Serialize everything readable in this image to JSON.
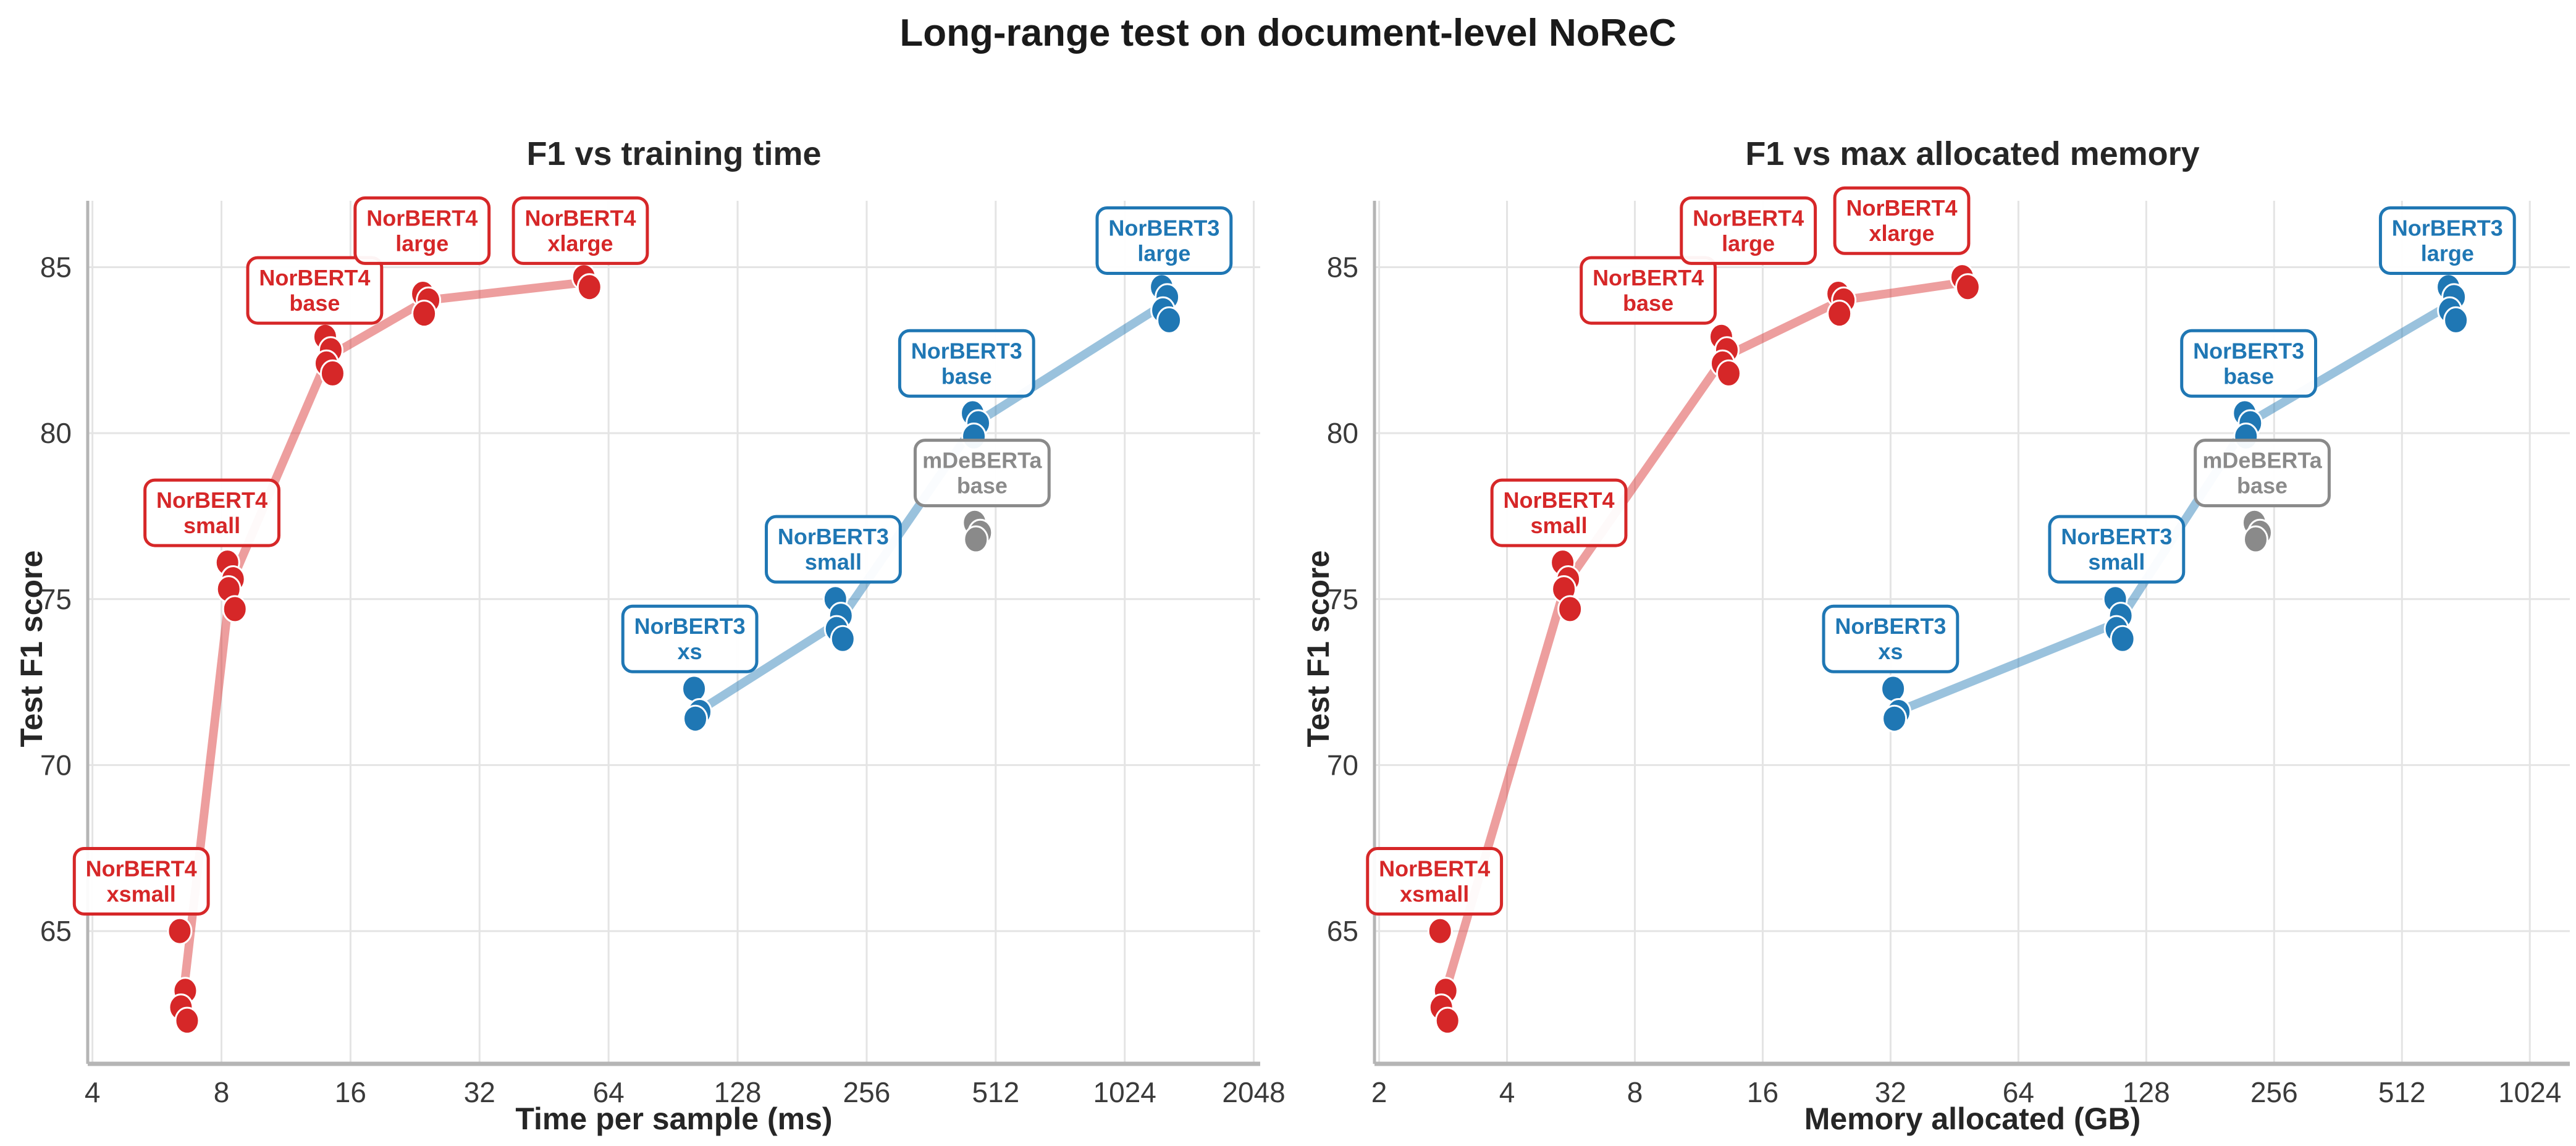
{
  "page": {
    "title": "Long-range test on document-level NoReC",
    "background": "#ffffff"
  },
  "style_colors": {
    "grid": "#e4e4e4",
    "spine": "#b5b5b5",
    "tick_text": "#3a3a3a",
    "title_text": "#1a1a1a"
  },
  "chart_data": [
    {
      "type": "scatter",
      "title": "F1 vs training time",
      "xlabel": "Time per sample (ms)",
      "ylabel": "Test F1 score",
      "xscale": "log2",
      "grid": true,
      "xlim": [
        3.9,
        2120
      ],
      "ylim": [
        61.0,
        87.0
      ],
      "xticks": [
        4,
        8,
        16,
        32,
        64,
        128,
        256,
        512,
        1024,
        2048
      ],
      "yticks": [
        65,
        70,
        75,
        80,
        85
      ],
      "series": [
        {
          "name": "NorBERT4",
          "point_color": "#d62728",
          "line_color": "rgba(214,39,40,0.45)",
          "label_color": "#d62728",
          "has_line": true,
          "groups": [
            {
              "label": [
                "NorBERT4",
                "xsmall"
              ],
              "x": 6.5,
              "points": [
                65.0,
                63.2,
                62.7,
                62.3
              ],
              "label_at": [
                5.2,
                66.5
              ]
            },
            {
              "label": [
                "NorBERT4",
                "small"
              ],
              "x": 8.4,
              "points": [
                76.1,
                75.6,
                75.3,
                74.7
              ],
              "label_at": [
                7.6,
                77.6
              ]
            },
            {
              "label": [
                "NorBERT4",
                "base"
              ],
              "x": 14.2,
              "points": [
                82.9,
                82.5,
                82.1,
                81.8
              ],
              "label_at": [
                13.2,
                84.3
              ]
            },
            {
              "label": [
                "NorBERT4",
                "large"
              ],
              "x": 24,
              "points": [
                84.2,
                84.0,
                83.6
              ],
              "label_at": [
                23.5,
                86.1
              ]
            },
            {
              "label": [
                "NorBERT4",
                "xlarge"
              ],
              "x": 57,
              "points": [
                84.7,
                84.4
              ],
              "label_at": [
                55,
                86.1
              ]
            }
          ]
        },
        {
          "name": "NorBERT3",
          "point_color": "#1f77b4",
          "line_color": "rgba(31,119,180,0.45)",
          "label_color": "#1f77b4",
          "has_line": true,
          "groups": [
            {
              "label": [
                "NorBERT3",
                "xs"
              ],
              "x": 103,
              "points": [
                72.3,
                71.6,
                71.4
              ],
              "label_at": [
                99,
                73.8
              ]
            },
            {
              "label": [
                "NorBERT3",
                "small"
              ],
              "x": 220,
              "points": [
                75.0,
                74.5,
                74.1,
                73.8
              ],
              "label_at": [
                214,
                76.5
              ]
            },
            {
              "label": [
                "NorBERT3",
                "base"
              ],
              "x": 460,
              "points": [
                80.6,
                80.3,
                79.9
              ],
              "label_at": [
                438,
                82.1
              ]
            },
            {
              "label": [
                "NorBERT3",
                "large"
              ],
              "x": 1270,
              "points": [
                84.4,
                84.1,
                83.7,
                83.4
              ],
              "label_at": [
                1265,
                85.8
              ]
            }
          ]
        },
        {
          "name": "mDeBERTa",
          "point_color": "#8a8a8a",
          "line_color": "rgba(138,138,138,0.45)",
          "label_color": "#8a8a8a",
          "has_line": false,
          "groups": [
            {
              "label": [
                "mDeBERTa",
                "base"
              ],
              "x": 465,
              "points": [
                77.3,
                77.0,
                76.8
              ],
              "label_at": [
                476,
                78.8
              ]
            }
          ]
        }
      ]
    },
    {
      "type": "scatter",
      "title": "F1 vs max allocated memory",
      "xlabel": "Memory allocated (GB)",
      "ylabel": "Test F1 score",
      "xscale": "log2",
      "grid": true,
      "xlim": [
        1.95,
        1272
      ],
      "ylim": [
        61.0,
        87.0
      ],
      "xticks": [
        2,
        4,
        8,
        16,
        32,
        64,
        128,
        256,
        512,
        1024
      ],
      "yticks": [
        65,
        70,
        75,
        80,
        85
      ],
      "series": [
        {
          "name": "NorBERT4",
          "point_color": "#d62728",
          "line_color": "rgba(214,39,40,0.45)",
          "label_color": "#d62728",
          "has_line": true,
          "groups": [
            {
              "label": [
                "NorBERT4",
                "xsmall"
              ],
              "x": 2.83,
              "points": [
                65.0,
                63.2,
                62.7,
                62.3
              ],
              "label_at": [
                2.7,
                66.5
              ]
            },
            {
              "label": [
                "NorBERT4",
                "small"
              ],
              "x": 5.5,
              "points": [
                76.1,
                75.6,
                75.3,
                74.7
              ],
              "label_at": [
                5.3,
                77.6
              ]
            },
            {
              "label": [
                "NorBERT4",
                "base"
              ],
              "x": 13,
              "points": [
                82.9,
                82.5,
                82.1,
                81.8
              ],
              "label_at": [
                8.6,
                84.3
              ]
            },
            {
              "label": [
                "NorBERT4",
                "large"
              ],
              "x": 24.5,
              "points": [
                84.2,
                84.0,
                83.6
              ],
              "label_at": [
                14.8,
                86.1
              ]
            },
            {
              "label": [
                "NorBERT4",
                "xlarge"
              ],
              "x": 48,
              "points": [
                84.7,
                84.4
              ],
              "label_at": [
                34,
                86.4
              ]
            }
          ]
        },
        {
          "name": "NorBERT3",
          "point_color": "#1f77b4",
          "line_color": "rgba(31,119,180,0.45)",
          "label_color": "#1f77b4",
          "has_line": true,
          "groups": [
            {
              "label": [
                "NorBERT3",
                "xs"
              ],
              "x": 33,
              "points": [
                72.3,
                71.6,
                71.4
              ],
              "label_at": [
                32,
                73.8
              ]
            },
            {
              "label": [
                "NorBERT3",
                "small"
              ],
              "x": 110,
              "points": [
                75.0,
                74.5,
                74.1,
                73.8
              ],
              "label_at": [
                109,
                76.5
              ]
            },
            {
              "label": [
                "NorBERT3",
                "base"
              ],
              "x": 222,
              "points": [
                80.6,
                80.3,
                79.9
              ],
              "label_at": [
                223,
                82.1
              ]
            },
            {
              "label": [
                "NorBERT3",
                "large"
              ],
              "x": 670,
              "points": [
                84.4,
                84.1,
                83.7,
                83.4
              ],
              "label_at": [
                655,
                85.8
              ]
            }
          ]
        },
        {
          "name": "mDeBERTa",
          "point_color": "#8a8a8a",
          "line_color": "rgba(138,138,138,0.45)",
          "label_color": "#8a8a8a",
          "has_line": false,
          "groups": [
            {
              "label": [
                "mDeBERTa",
                "base"
              ],
              "x": 234,
              "points": [
                77.3,
                77.0,
                76.8
              ],
              "label_at": [
                240,
                78.8
              ]
            }
          ]
        }
      ]
    }
  ]
}
